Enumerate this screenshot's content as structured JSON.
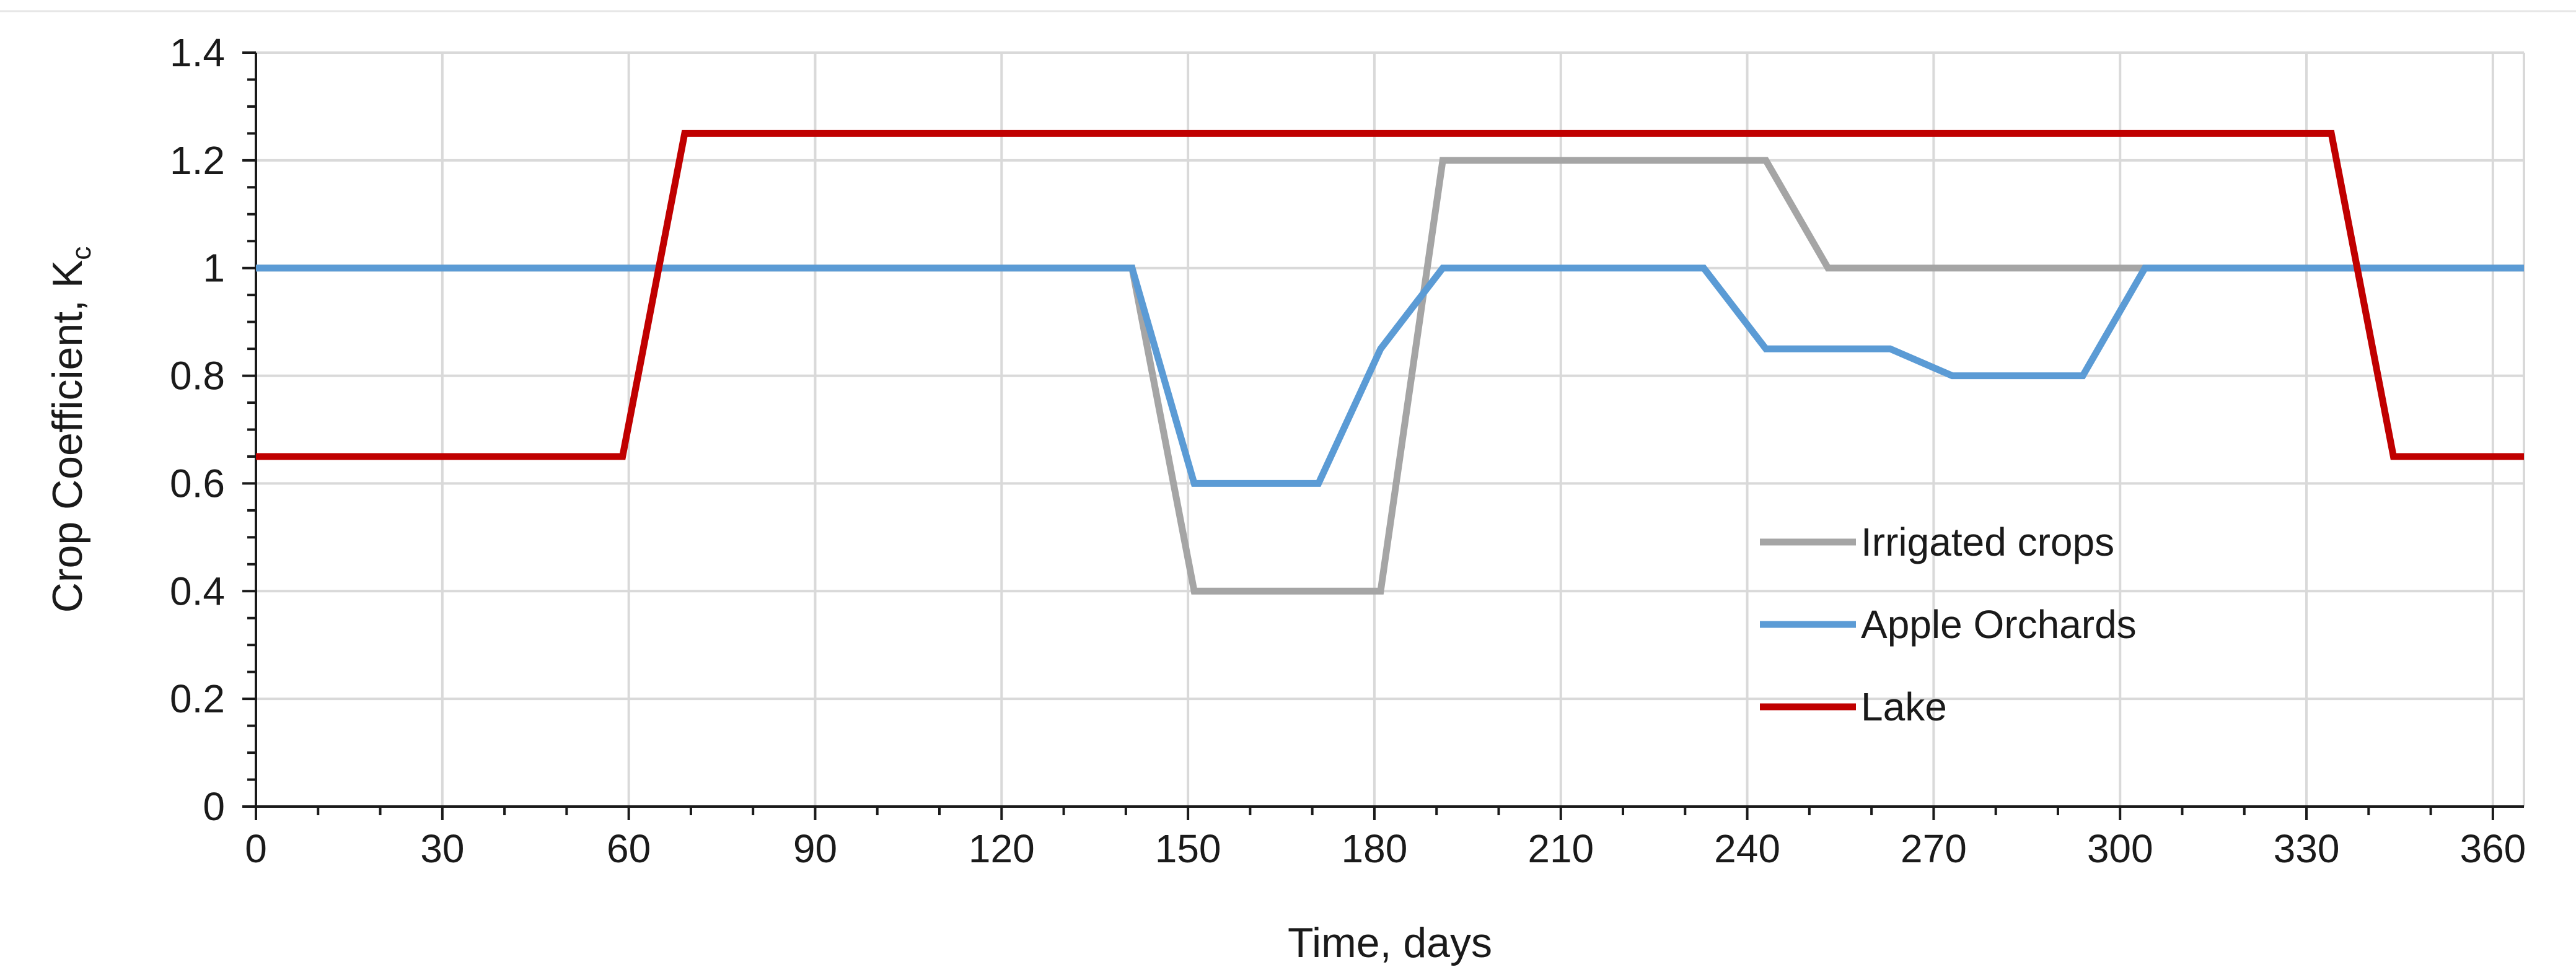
{
  "chart_data": {
    "type": "line",
    "title": "",
    "xlabel": "Time, days",
    "ylabel": "Crop Coefficient, K",
    "ylabel_sub": "c",
    "xlim": [
      0,
      365
    ],
    "ylim": [
      0,
      1.4
    ],
    "xticks": [
      0,
      30,
      60,
      90,
      120,
      150,
      180,
      210,
      240,
      270,
      300,
      330,
      360
    ],
    "yticks": [
      0,
      0.2,
      0.4,
      0.6,
      0.8,
      1,
      1.2,
      1.4
    ],
    "ytick_labels": [
      "0",
      "0.2",
      "0.4",
      "0.6",
      "0.8",
      "1",
      "1.2",
      "1.4"
    ],
    "grid": true,
    "legend_position": "center-right",
    "series": [
      {
        "name": "Irrigated crops",
        "color": "#a5a5a5",
        "x": [
          0,
          141,
          151,
          181,
          191,
          243,
          253,
          304,
          365
        ],
        "y": [
          1.0,
          1.0,
          0.4,
          0.4,
          1.2,
          1.2,
          1.0,
          1.0,
          1.0
        ]
      },
      {
        "name": "Apple Orchards",
        "color": "#5b9bd5",
        "x": [
          0,
          141,
          151,
          171,
          181,
          191,
          233,
          243,
          263,
          273,
          294,
          304,
          365
        ],
        "y": [
          1.0,
          1.0,
          0.6,
          0.6,
          0.85,
          1.0,
          1.0,
          0.85,
          0.85,
          0.8,
          0.8,
          1.0,
          1.0
        ]
      },
      {
        "name": "Lake",
        "color": "#c00000",
        "x": [
          0,
          59,
          69,
          334,
          344,
          365
        ],
        "y": [
          0.65,
          0.65,
          1.25,
          1.25,
          0.65,
          0.65
        ]
      }
    ]
  }
}
